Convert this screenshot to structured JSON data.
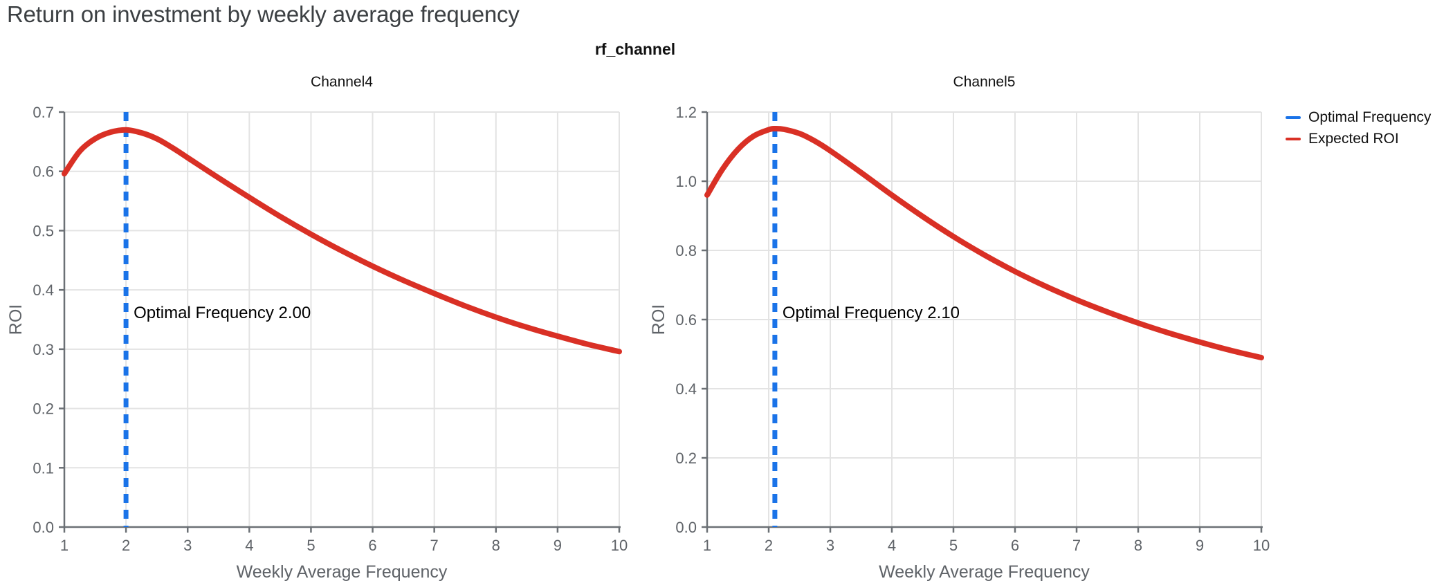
{
  "page": {
    "title": "Return on investment by weekly average frequency",
    "facet_title": "rf_channel"
  },
  "legend": {
    "items": [
      {
        "label": "Optimal Frequency",
        "color": "#1a73e8"
      },
      {
        "label": "Expected ROI",
        "color": "#d93025"
      }
    ]
  },
  "colors": {
    "optimal_frequency_line": "#1a73e8",
    "expected_roi_line": "#d93025",
    "grid": "#e3e3e3",
    "axis": "#6b7075",
    "tick_text": "#5f6368",
    "title_text": "#3c4043",
    "annotation_text": "#000000"
  },
  "chart_data": [
    {
      "type": "line",
      "title": "Channel4",
      "xlabel": "Weekly Average Frequency",
      "ylabel": "ROI",
      "xlim": [
        1,
        10
      ],
      "ylim": [
        0.0,
        0.7
      ],
      "xticks": [
        1,
        2,
        3,
        4,
        5,
        6,
        7,
        8,
        9,
        10
      ],
      "yticks": [
        0.0,
        0.1,
        0.2,
        0.3,
        0.4,
        0.5,
        0.6,
        0.7
      ],
      "grid": true,
      "optimal_frequency": {
        "x": 2.0,
        "annotation": "Optimal Frequency  2.00",
        "style": "dashed",
        "color": "#1a73e8"
      },
      "series": [
        {
          "name": "Expected ROI",
          "color": "#d93025",
          "x": [
            1,
            1.25,
            1.5,
            1.75,
            2,
            2.25,
            2.5,
            2.75,
            3,
            3.5,
            4,
            4.5,
            5,
            5.5,
            6,
            6.5,
            7,
            7.5,
            8,
            8.5,
            9,
            9.5,
            10
          ],
          "y": [
            0.596,
            0.634,
            0.655,
            0.666,
            0.67,
            0.665,
            0.655,
            0.64,
            0.623,
            0.589,
            0.556,
            0.524,
            0.494,
            0.466,
            0.44,
            0.416,
            0.394,
            0.373,
            0.354,
            0.337,
            0.322,
            0.308,
            0.296
          ]
        }
      ]
    },
    {
      "type": "line",
      "title": "Channel5",
      "xlabel": "Weekly Average Frequency",
      "ylabel": "ROI",
      "xlim": [
        1,
        10
      ],
      "ylim": [
        0.0,
        1.2
      ],
      "xticks": [
        1,
        2,
        3,
        4,
        5,
        6,
        7,
        8,
        9,
        10
      ],
      "yticks": [
        0.0,
        0.2,
        0.4,
        0.6,
        0.8,
        1.0,
        1.2
      ],
      "grid": true,
      "optimal_frequency": {
        "x": 2.1,
        "annotation": "Optimal Frequency  2.10",
        "style": "dashed",
        "color": "#1a73e8"
      },
      "series": [
        {
          "name": "Expected ROI",
          "color": "#d93025",
          "x": [
            1,
            1.25,
            1.5,
            1.75,
            2,
            2.1,
            2.25,
            2.5,
            2.75,
            3,
            3.5,
            4,
            4.5,
            5,
            5.5,
            6,
            6.5,
            7,
            7.5,
            8,
            8.5,
            9,
            9.5,
            10
          ],
          "y": [
            0.96,
            1.035,
            1.092,
            1.13,
            1.149,
            1.152,
            1.15,
            1.138,
            1.116,
            1.088,
            1.025,
            0.96,
            0.898,
            0.84,
            0.787,
            0.739,
            0.696,
            0.657,
            0.622,
            0.59,
            0.561,
            0.535,
            0.511,
            0.49
          ]
        }
      ]
    }
  ]
}
